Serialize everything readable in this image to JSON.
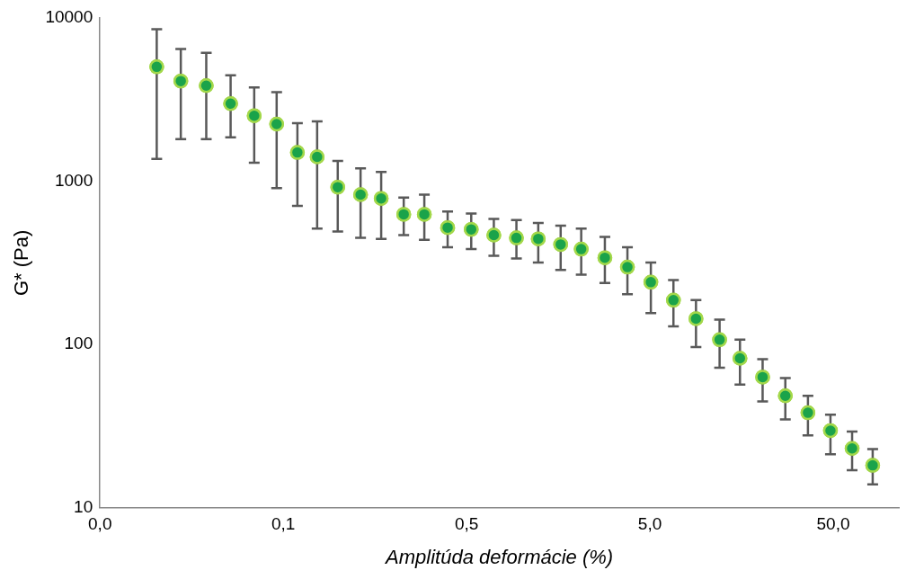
{
  "chart_data": {
    "type": "scatter",
    "xlabel": "Amplitúda deformácie (%)",
    "ylabel": "G* (Pa)",
    "log": "xy",
    "grid": false,
    "legend": false,
    "marker": "circle",
    "xlim": [
      0.005,
      114
    ],
    "xticks": [
      {
        "value": 0.005,
        "label": "0,0"
      },
      {
        "value": 0.05,
        "label": "0,1"
      },
      {
        "value": 0.5,
        "label": "0,5"
      },
      {
        "value": 5,
        "label": "5,0"
      },
      {
        "value": 50,
        "label": "50,0"
      }
    ],
    "ylim": [
      10,
      10000
    ],
    "yticks": [
      10,
      100,
      1000,
      10000
    ],
    "series": [
      {
        "color": "#1aa34a",
        "x": [
          0.0102,
          0.0138,
          0.019,
          0.0258,
          0.0347,
          0.046,
          0.0597,
          0.0765,
          0.0991,
          0.132,
          0.171,
          0.227,
          0.294,
          0.394,
          0.53,
          0.704,
          0.935,
          1.23,
          1.63,
          2.11,
          2.84,
          3.77,
          5.06,
          6.72,
          8.92,
          12.0,
          15.5,
          20.6,
          27.4,
          36.4,
          48.3,
          63.4,
          82.1
        ],
        "values": [
          5020,
          4110,
          3850,
          2990,
          2520,
          2240,
          1500,
          1410,
          920,
          828,
          785,
          627,
          627,
          520,
          507,
          468,
          450,
          444,
          410,
          384,
          340,
          298,
          241,
          187,
          144,
          107,
          82.4,
          63.2,
          48.5,
          38.2,
          29.7,
          23.1,
          18.2
        ],
        "errors": [
          [
            1370,
            8530
          ],
          [
            1810,
            6460
          ],
          [
            1810,
            6120
          ],
          [
            1860,
            4460
          ],
          [
            1300,
            3750
          ],
          [
            908,
            3510
          ],
          [
            706,
            2270
          ],
          [
            513,
            2330
          ],
          [
            493,
            1330
          ],
          [
            450,
            1200
          ],
          [
            444,
            1140
          ],
          [
            468,
            795
          ],
          [
            438,
            828
          ],
          [
            394,
            652
          ],
          [
            384,
            635
          ],
          [
            349,
            587
          ],
          [
            336,
            578
          ],
          [
            318,
            556
          ],
          [
            286,
            535
          ],
          [
            268,
            513
          ],
          [
            238,
            456
          ],
          [
            203,
            394
          ],
          [
            156,
            318
          ],
          [
            129,
            248
          ],
          [
            96.6,
            187
          ],
          [
            72.2,
            142
          ],
          [
            56.9,
            107
          ],
          [
            44.8,
            81.3
          ],
          [
            34.8,
            62.4
          ],
          [
            27.8,
            48.5
          ],
          [
            21.3,
            37.2
          ],
          [
            17.0,
            29.3
          ],
          [
            13.9,
            22.9
          ]
        ]
      }
    ]
  }
}
